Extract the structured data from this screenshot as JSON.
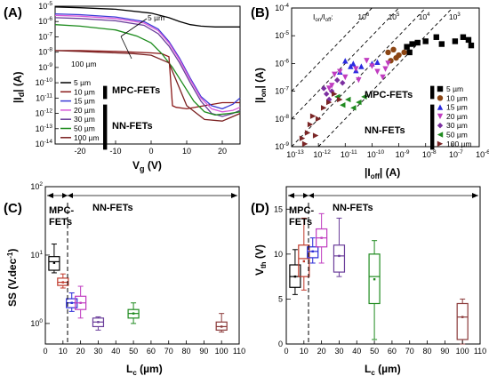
{
  "panels": {
    "A": {
      "tag": "(A)",
      "xlabel": "V",
      "xlabel_sub": "g",
      "xunit": " (V)",
      "ylabel": "|I",
      "ylabel_sub": "d",
      "yunit": "| (A)",
      "xticks": [
        "-20",
        "-10",
        "0",
        "10",
        "20"
      ],
      "annot_top": "5 µm",
      "annot_bottom": "100 µm",
      "group_mpc": "MPC-FETs",
      "group_nn": "NN-FETs"
    },
    "B": {
      "tag": "(B)",
      "xlabel": "|I",
      "xlabel_sub": "off",
      "xunit": "| (A)",
      "ylabel": "|I",
      "ylabel_sub": "on",
      "yunit": "| (A)",
      "ratio_label": "I",
      "ratio_sub1": "on",
      "ratio_mid": "/I",
      "ratio_sub2": "off",
      "ratio_eq": ":",
      "ratio_vals": [
        "10",
        "10",
        "10",
        "10"
      ],
      "ratio_exps": [
        "6",
        "5",
        "4",
        "3"
      ],
      "group_mpc": "MPC-FETs",
      "group_nn": "NN-FETs"
    },
    "C": {
      "tag": "(C)",
      "xlabel": "L",
      "xlabel_sub": "c",
      "xunit": " (µm)",
      "ylabel": "SS (V.dec",
      "ylabel_sup": "-1",
      "yunit": ")",
      "xticks": [
        "0",
        "10",
        "20",
        "30",
        "40",
        "50",
        "60",
        "70",
        "80",
        "90",
        "100",
        "110"
      ],
      "mpc": "MPC-",
      "fets": "FETs",
      "nn": "NN-FETs"
    },
    "D": {
      "tag": "(D)",
      "xlabel": "L",
      "xlabel_sub": "c",
      "xunit": " (µm)",
      "ylabel": "V",
      "ylabel_sub": "th",
      "yunit": " (V)",
      "xticks": [
        "0",
        "10",
        "20",
        "30",
        "40",
        "50",
        "60",
        "70",
        "80",
        "90",
        "100",
        "110"
      ],
      "yticks": [
        "0",
        "5",
        "10",
        "15"
      ],
      "mpc": "MPC-",
      "fets": "FETs",
      "nn": "NN-FETs"
    }
  },
  "log_tick_base": "10",
  "chart_data": [
    {
      "panel": "A",
      "type": "line",
      "xlabel": "Vg (V)",
      "ylabel": "|Id| (A)",
      "xlim": [
        -27,
        25
      ],
      "ylim_log10": [
        -14,
        -5
      ],
      "yscale": "log",
      "series": [
        {
          "name": "5 µm",
          "color": "#000000",
          "x": [
            -27,
            -20,
            -10,
            0,
            5,
            8,
            11,
            14,
            18,
            22,
            25
          ],
          "log10_y": [
            -5.05,
            -5.1,
            -5.2,
            -5.45,
            -5.75,
            -6.0,
            -6.2,
            -6.3,
            -6.35,
            -6.35,
            -6.35
          ]
        },
        {
          "name": "10 µm",
          "color": "#8b1a1a",
          "x": [
            -27,
            -20,
            -10,
            -5,
            0,
            3,
            5,
            6,
            7,
            10,
            15,
            20,
            25
          ],
          "log10_y": [
            -7.9,
            -7.9,
            -7.95,
            -8.0,
            -8.05,
            -8.1,
            -8.3,
            -11.5,
            -11.6,
            -11.7,
            -11.5,
            -11.3,
            -11.3
          ]
        },
        {
          "name": "15 µm",
          "color": "#3b3bd6",
          "x": [
            -27,
            -20,
            -10,
            -2,
            2,
            5,
            8,
            11,
            14,
            17,
            20,
            23,
            25
          ],
          "log10_y": [
            -5.5,
            -5.55,
            -5.7,
            -6.0,
            -6.5,
            -7.3,
            -8.4,
            -9.7,
            -10.9,
            -11.5,
            -11.7,
            -11.4,
            -11.0
          ]
        },
        {
          "name": "20 µm",
          "color": "#d95ad9",
          "x": [
            -27,
            -20,
            -10,
            -2,
            2,
            5,
            8,
            11,
            14,
            17,
            20,
            23,
            25
          ],
          "log10_y": [
            -5.6,
            -5.65,
            -5.8,
            -6.1,
            -6.6,
            -7.4,
            -8.5,
            -9.8,
            -11.0,
            -11.7,
            -11.9,
            -11.8,
            -11.6
          ]
        },
        {
          "name": "30 µm",
          "color": "#6a3d9a",
          "x": [
            -27,
            -20,
            -10,
            -2,
            2,
            5,
            8,
            11,
            14,
            17,
            20,
            23,
            25
          ],
          "log10_y": [
            -5.75,
            -5.8,
            -5.95,
            -6.25,
            -6.8,
            -7.6,
            -8.7,
            -10.0,
            -11.2,
            -12.0,
            -12.2,
            -12.0,
            -11.8
          ]
        },
        {
          "name": "50 µm",
          "color": "#1b8a1b",
          "x": [
            -27,
            -20,
            -10,
            -4,
            0,
            3,
            6,
            9,
            12,
            15,
            18,
            22,
            25
          ],
          "log10_y": [
            -6.2,
            -6.3,
            -6.55,
            -6.95,
            -7.4,
            -8.1,
            -9.0,
            -10.1,
            -11.2,
            -11.9,
            -12.1,
            -12.0,
            -11.9
          ]
        },
        {
          "name": "100 µm",
          "color": "#7a2020",
          "x": [
            -27,
            -20,
            -15,
            -10,
            -5,
            0,
            5,
            10,
            15,
            20,
            25
          ],
          "log10_y": [
            -7.9,
            -7.95,
            -8.0,
            -8.05,
            -8.1,
            -8.2,
            -8.7,
            -11.5,
            -12.4,
            -12.5,
            -12.0
          ]
        }
      ]
    },
    {
      "panel": "B",
      "type": "scatter",
      "xlabel": "|Ioff| (A)",
      "ylabel": "|Ion| (A)",
      "xscale": "log",
      "yscale": "log",
      "xlim_log10": [
        -13,
        -6
      ],
      "ylim_log10": [
        -9,
        -4
      ],
      "ratio_lines_log10": [
        6,
        5,
        4,
        3
      ],
      "series": [
        {
          "name": "5 µm",
          "color": "#000000",
          "marker": "square",
          "points_log10": [
            [
              -8.7,
              -5.4
            ],
            [
              -8.5,
              -5.3
            ],
            [
              -8.3,
              -5.25
            ],
            [
              -8.0,
              -5.2
            ],
            [
              -7.6,
              -5.05
            ],
            [
              -7.4,
              -5.3
            ],
            [
              -6.9,
              -5.2
            ],
            [
              -6.6,
              -5.05
            ],
            [
              -6.4,
              -5.15
            ],
            [
              -6.3,
              -5.35
            ],
            [
              -8.6,
              -5.6
            ]
          ]
        },
        {
          "name": "10 µm",
          "color": "#8b4513",
          "marker": "circle",
          "points_log10": [
            [
              -9.4,
              -5.6
            ],
            [
              -9.2,
              -5.5
            ],
            [
              -9.1,
              -5.8
            ],
            [
              -9.0,
              -5.7
            ],
            [
              -8.8,
              -5.6
            ],
            [
              -9.3,
              -5.9
            ]
          ]
        },
        {
          "name": "15 µm",
          "color": "#2a2ae0",
          "marker": "triangle-up",
          "points_log10": [
            [
              -11.0,
              -5.9
            ],
            [
              -10.8,
              -6.1
            ],
            [
              -10.7,
              -6.0
            ],
            [
              -10.6,
              -6.25
            ],
            [
              -10.4,
              -6.1
            ],
            [
              -10.0,
              -6.0
            ],
            [
              -9.8,
              -5.95
            ],
            [
              -11.2,
              -6.3
            ]
          ]
        },
        {
          "name": "20 µm",
          "color": "#c03cc0",
          "marker": "triangle-down",
          "points_log10": [
            [
              -11.5,
              -6.8
            ],
            [
              -11.4,
              -6.4
            ],
            [
              -11.2,
              -6.3
            ],
            [
              -11.0,
              -6.5
            ],
            [
              -10.6,
              -6.2
            ],
            [
              -10.2,
              -5.9
            ],
            [
              -10.0,
              -6.1
            ],
            [
              -9.8,
              -6.3
            ],
            [
              -9.6,
              -6.5
            ],
            [
              -9.5,
              -6.2
            ],
            [
              -9.4,
              -6.0
            ],
            [
              -11.6,
              -6.9
            ],
            [
              -10.5,
              -6.6
            ]
          ]
        },
        {
          "name": "30 µm",
          "color": "#7b2fa0",
          "marker": "diamond",
          "points_log10": [
            [
              -11.8,
              -6.9
            ],
            [
              -11.7,
              -7.1
            ],
            [
              -11.5,
              -7.0
            ],
            [
              -11.3,
              -6.6
            ],
            [
              -11.1,
              -6.7
            ],
            [
              -11.6,
              -7.3
            ]
          ]
        },
        {
          "name": "50 µm",
          "color": "#1f8a1f",
          "marker": "triangle-left",
          "points_log10": [
            [
              -11.3,
              -7.2
            ],
            [
              -11.1,
              -7.5
            ],
            [
              -10.9,
              -7.3
            ],
            [
              -10.7,
              -7.6
            ],
            [
              -10.5,
              -7.4
            ],
            [
              -10.3,
              -7.2
            ]
          ]
        },
        {
          "name": "100 µm",
          "color": "#7a2525",
          "marker": "triangle-right",
          "points_log10": [
            [
              -12.5,
              -8.9
            ],
            [
              -12.4,
              -8.5
            ],
            [
              -12.3,
              -8.2
            ],
            [
              -12.2,
              -7.9
            ],
            [
              -12.1,
              -8.6
            ],
            [
              -12.0,
              -8.0
            ],
            [
              -11.8,
              -7.6
            ],
            [
              -11.6,
              -7.4
            ],
            [
              -11.4,
              -7.1
            ],
            [
              -11.2,
              -7.3
            ],
            [
              -12.6,
              -8.7
            ]
          ]
        }
      ]
    },
    {
      "panel": "C",
      "type": "box",
      "xlabel": "Lc (µm)",
      "ylabel": "SS (V.dec-1)",
      "yscale": "log",
      "xlim": [
        0,
        110
      ],
      "ylim_log10": [
        -0.3,
        2
      ],
      "divider_x": 12.5,
      "boxes": [
        {
          "lc": 5,
          "color": "#000000",
          "min": 5.5,
          "q1": 6.0,
          "median": 8.0,
          "mean": 7.7,
          "q3": 9.5,
          "max": 14.5
        },
        {
          "lc": 10,
          "color": "#c0392b",
          "min": 3.3,
          "q1": 3.6,
          "median": 4.0,
          "mean": 4.0,
          "q3": 4.6,
          "max": 5.3
        },
        {
          "lc": 15,
          "color": "#2a2ad6",
          "min": 1.5,
          "q1": 1.7,
          "median": 2.0,
          "mean": 2.0,
          "q3": 2.3,
          "max": 2.8
        },
        {
          "lc": 20,
          "color": "#c03cc0",
          "min": 1.2,
          "q1": 1.6,
          "median": 2.0,
          "mean": 2.0,
          "q3": 2.5,
          "max": 3.5
        },
        {
          "lc": 30,
          "color": "#6a3d9a",
          "min": 0.8,
          "q1": 0.9,
          "median": 1.05,
          "mean": 1.05,
          "q3": 1.2,
          "max": 1.25
        },
        {
          "lc": 50,
          "color": "#1f8a1f",
          "min": 1.0,
          "q1": 1.2,
          "median": 1.4,
          "mean": 1.4,
          "q3": 1.6,
          "max": 2.0
        },
        {
          "lc": 100,
          "color": "#8b3a3a",
          "min": 0.75,
          "q1": 0.8,
          "median": 0.9,
          "mean": 0.9,
          "q3": 1.05,
          "max": 1.4
        }
      ]
    },
    {
      "panel": "D",
      "type": "box",
      "xlabel": "Lc (µm)",
      "ylabel": "Vth (V)",
      "xlim": [
        0,
        110
      ],
      "ylim": [
        0,
        17.5
      ],
      "divider_x": 12.5,
      "boxes": [
        {
          "lc": 5,
          "color": "#000000",
          "min": 5.5,
          "q1": 6.3,
          "median": 7.5,
          "mean": 7.5,
          "q3": 8.8,
          "max": 10.5
        },
        {
          "lc": 10,
          "color": "#c0392b",
          "min": 6.0,
          "q1": 7.5,
          "median": 9.5,
          "mean": 9.2,
          "q3": 11.0,
          "max": 14.0
        },
        {
          "lc": 15,
          "color": "#2a2ad6",
          "min": 9.0,
          "q1": 9.6,
          "median": 10.3,
          "mean": 10.3,
          "q3": 10.8,
          "max": 11.8
        },
        {
          "lc": 20,
          "color": "#c03cc0",
          "min": 9.0,
          "q1": 10.8,
          "median": 11.8,
          "mean": 11.8,
          "q3": 12.8,
          "max": 14.5
        },
        {
          "lc": 30,
          "color": "#6a3d9a",
          "min": 7.5,
          "q1": 8.0,
          "median": 9.8,
          "mean": 9.8,
          "q3": 11.0,
          "max": 14.0
        },
        {
          "lc": 50,
          "color": "#1f8a1f",
          "min": 0.5,
          "q1": 4.5,
          "median": 7.5,
          "mean": 7.2,
          "q3": 10.0,
          "max": 11.5
        },
        {
          "lc": 100,
          "color": "#8b3a3a",
          "min": 0.0,
          "q1": 0.5,
          "median": 3.0,
          "mean": 3.0,
          "q3": 4.5,
          "max": 5.0
        }
      ]
    }
  ]
}
